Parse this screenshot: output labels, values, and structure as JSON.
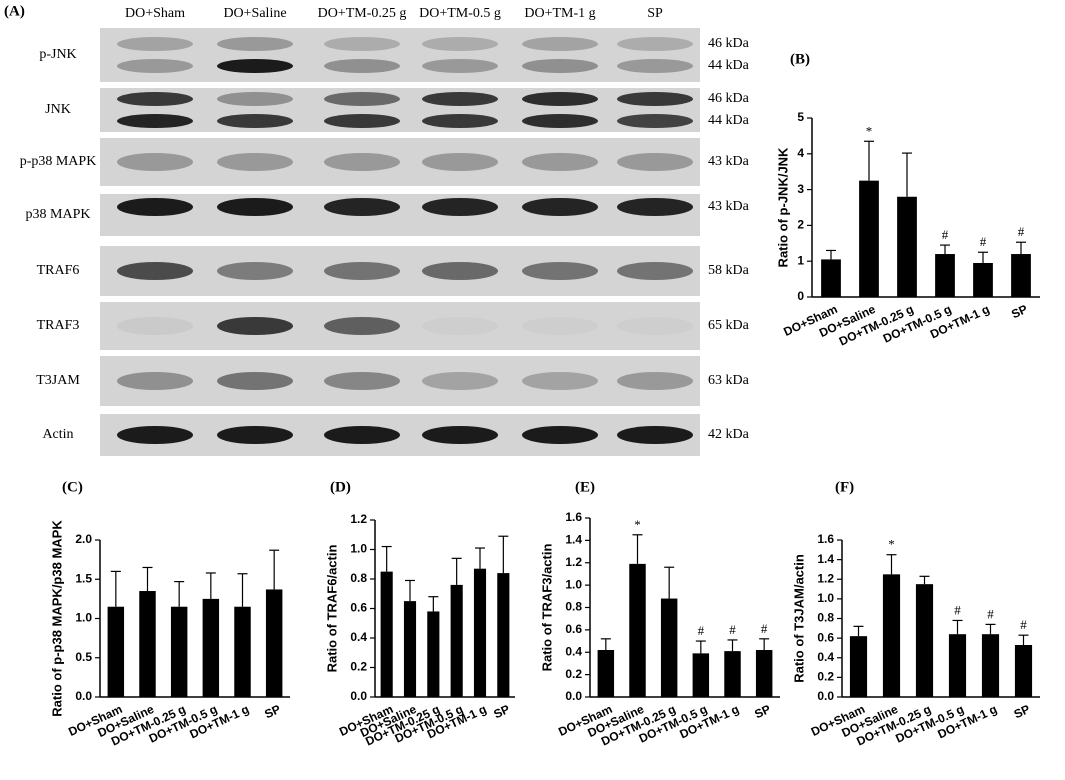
{
  "panel_a": {
    "label": "(A)",
    "lanes": [
      "DO+Sham",
      "DO+Saline",
      "DO+TM-0.25 g",
      "DO+TM-0.5 g",
      "DO+TM-1 g",
      "SP"
    ],
    "rows": [
      {
        "protein": "p-JNK",
        "sizes": [
          "46 kDa",
          "44 kDa"
        ]
      },
      {
        "protein": "JNK",
        "sizes": [
          "46 kDa",
          "44 kDa"
        ]
      },
      {
        "protein": "p-p38 MAPK",
        "sizes": [
          "43 kDa"
        ]
      },
      {
        "protein": "p38 MAPK",
        "sizes": [
          "43 kDa"
        ]
      },
      {
        "protein": "TRAF6",
        "sizes": [
          "58 kDa"
        ]
      },
      {
        "protein": "TRAF3",
        "sizes": [
          "65 kDa"
        ]
      },
      {
        "protein": "T3JAM",
        "sizes": [
          "63 kDa"
        ]
      },
      {
        "protein": "Actin",
        "sizes": [
          "42 kDa"
        ]
      }
    ]
  },
  "chart_data": [
    {
      "type": "bar",
      "panel": "(B)",
      "ylabel": "Ratio of p-JNK/JNK",
      "color": "#000000",
      "categories": [
        "DO+Sham",
        "DO+Saline",
        "DO+TM-0.25 g",
        "DO+TM-0.5 g",
        "DO+TM-1 g",
        "SP"
      ],
      "values": [
        1.05,
        3.25,
        2.8,
        1.2,
        0.95,
        1.2
      ],
      "errors": [
        0.25,
        1.1,
        1.22,
        0.25,
        0.3,
        0.33
      ],
      "significance": [
        null,
        "*",
        null,
        "#",
        "#",
        "#"
      ],
      "ylim": [
        0,
        5
      ],
      "yticks": [
        0,
        1,
        2,
        3,
        4,
        5
      ]
    },
    {
      "type": "bar",
      "panel": "(C)",
      "ylabel": "Ratio of p-p38 MAPK/p38 MAPK",
      "color": "#000000",
      "categories": [
        "DO+Sham",
        "DO+Saline",
        "DO+TM-0.25 g",
        "DO+TM-0.5 g",
        "DO+TM-1 g",
        "SP"
      ],
      "values": [
        1.15,
        1.35,
        1.15,
        1.25,
        1.15,
        1.37
      ],
      "errors": [
        0.45,
        0.3,
        0.32,
        0.33,
        0.42,
        0.5
      ],
      "significance": [
        null,
        null,
        null,
        null,
        null,
        null
      ],
      "ylim": [
        0,
        2
      ],
      "yticks": [
        {
          "value": 0,
          "label": "0.0"
        },
        0.5,
        {
          "value": 1,
          "label": "1.0"
        },
        1.5,
        {
          "value": 2,
          "label": "2.0"
        }
      ]
    },
    {
      "type": "bar",
      "panel": "(D)",
      "ylabel": "Ratio of TRAF6/actin",
      "color": "#000000",
      "categories": [
        "DO+Sham",
        "DO+Saline",
        "DO+TM-0.25 g",
        "DO+TM-0.5 g",
        "DO+TM-1 g",
        "SP"
      ],
      "values": [
        0.85,
        0.65,
        0.58,
        0.76,
        0.87,
        0.84
      ],
      "errors": [
        0.17,
        0.14,
        0.1,
        0.18,
        0.14,
        0.25
      ],
      "significance": [
        null,
        null,
        null,
        null,
        null,
        null
      ],
      "ylim": [
        0,
        1.2
      ],
      "yticks": [
        {
          "value": 0,
          "label": "0.0"
        },
        0.2,
        0.4,
        0.6,
        0.8,
        {
          "value": 1,
          "label": "1.0"
        },
        1.2
      ]
    },
    {
      "type": "bar",
      "panel": "(E)",
      "ylabel": "Ratio of TRAF3/actin",
      "color": "#000000",
      "categories": [
        "DO+Sham",
        "DO+Saline",
        "DO+TM-0.25 g",
        "DO+TM-0.5 g",
        "DO+TM-1 g",
        "SP"
      ],
      "values": [
        0.42,
        1.19,
        0.88,
        0.39,
        0.41,
        0.42
      ],
      "errors": [
        0.1,
        0.26,
        0.28,
        0.11,
        0.1,
        0.1
      ],
      "significance": [
        null,
        "*",
        null,
        "#",
        "#",
        "#"
      ],
      "ylim": [
        0,
        1.6
      ],
      "yticks": [
        {
          "value": 0,
          "label": "0.0"
        },
        0.2,
        0.4,
        0.6,
        0.8,
        {
          "value": 1,
          "label": "1.0"
        },
        1.2,
        1.4,
        1.6
      ]
    },
    {
      "type": "bar",
      "panel": "(F)",
      "ylabel": "Ratio of T3JAM/actin",
      "color": "#000000",
      "categories": [
        "DO+Sham",
        "DO+Saline",
        "DO+TM-0.25 g",
        "DO+TM-0.5 g",
        "DO+TM-1 g",
        "SP"
      ],
      "values": [
        0.62,
        1.25,
        1.15,
        0.64,
        0.64,
        0.53
      ],
      "errors": [
        0.1,
        0.2,
        0.08,
        0.14,
        0.1,
        0.1
      ],
      "significance": [
        null,
        "*",
        null,
        "#",
        "#",
        "#"
      ],
      "ylim": [
        0,
        1.6
      ],
      "yticks": [
        {
          "value": 0,
          "label": "0.0"
        },
        0.2,
        0.4,
        0.6,
        0.8,
        {
          "value": 1,
          "label": "1.0"
        },
        1.2,
        1.4,
        1.6
      ]
    }
  ]
}
